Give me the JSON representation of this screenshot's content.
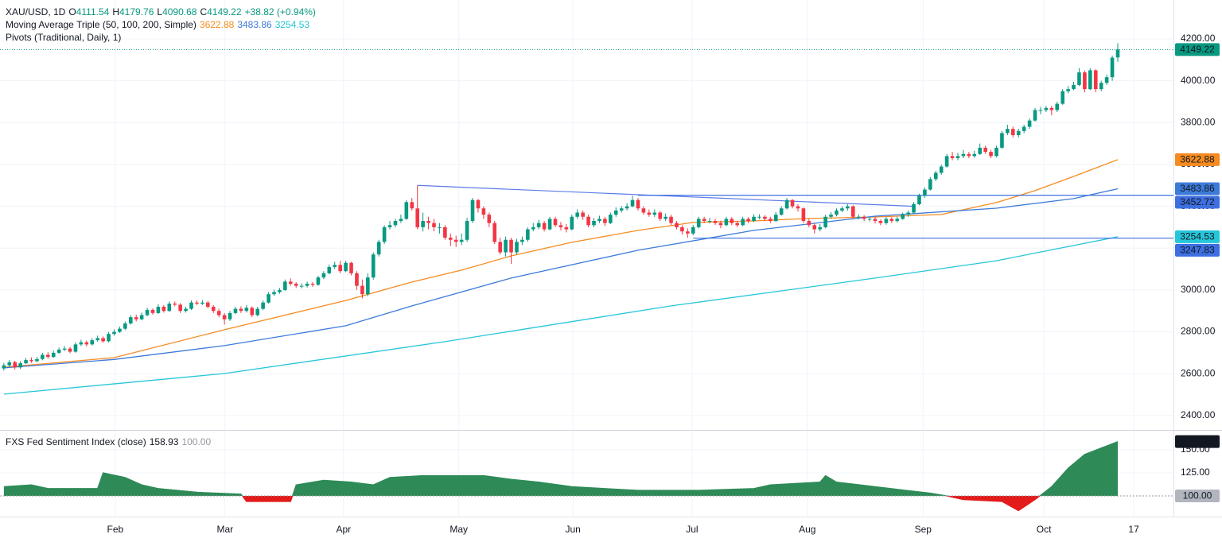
{
  "chart_data": {
    "type": "candlestick",
    "legend": {
      "symbol": "XAU/USD, 1D",
      "open_label": "O",
      "high_label": "H",
      "low_label": "L",
      "close_label": "C",
      "change": "+38.82 (+0.94%)",
      "ma_title": "Moving Average Triple (50, 100, 200, Simple)",
      "pivots_title": "Pivots (Traditional, Daily, 1)"
    },
    "up_color": "#089981",
    "down_color": "#f23645",
    "ohlc": {
      "open": [
        2625,
        2640,
        2655,
        2630,
        2650,
        2665,
        2660,
        2670,
        2690,
        2680,
        2700,
        2715,
        2720,
        2705,
        2740,
        2750,
        2740,
        2760,
        2770,
        2755,
        2790,
        2800,
        2815,
        2840,
        2870,
        2860,
        2880,
        2905,
        2890,
        2920,
        2900,
        2935,
        2930,
        2900,
        2910,
        2940,
        2935,
        2940,
        2920,
        2900,
        2880,
        2860,
        2890,
        2910,
        2900,
        2915,
        2880,
        2910,
        2940,
        2980,
        2990,
        3000,
        3040,
        3030,
        3020,
        3020,
        3030,
        3025,
        3060,
        3080,
        3110,
        3120,
        3090,
        3130,
        3080,
        3020,
        2980,
        3060,
        3170,
        3230,
        3300,
        3310,
        3330,
        3340,
        3420,
        3390,
        3300,
        3330,
        3320,
        3300,
        3300,
        3250,
        3240,
        3230,
        3240,
        3330,
        3430,
        3390,
        3360,
        3320,
        3230,
        3180,
        3240,
        3180,
        3230,
        3240,
        3290,
        3300,
        3320,
        3290,
        3340,
        3310,
        3300,
        3290,
        3350,
        3370,
        3350,
        3310,
        3330,
        3340,
        3320,
        3360,
        3380,
        3390,
        3400,
        3430,
        3390,
        3370,
        3360,
        3370,
        3340,
        3350,
        3320,
        3300,
        3280,
        3270,
        3300,
        3340,
        3330,
        3330,
        3320,
        3310,
        3340,
        3320,
        3310,
        3340,
        3330,
        3350,
        3350,
        3340,
        3330,
        3360,
        3390,
        3430,
        3400,
        3390,
        3330,
        3310,
        3290,
        3300,
        3350,
        3360,
        3380,
        3390,
        3400,
        3350,
        3350,
        3340,
        3340,
        3330,
        3320,
        3340,
        3330,
        3340,
        3360,
        3370,
        3410,
        3450,
        3480,
        3530,
        3560,
        3590,
        3640,
        3630,
        3640,
        3650,
        3640,
        3650,
        3680,
        3660,
        3640,
        3680,
        3750,
        3770,
        3740,
        3760,
        3780,
        3810,
        3860,
        3860,
        3870,
        3860,
        3890,
        3950,
        3960,
        3980,
        4040,
        3960,
        4050,
        3960,
        3990,
        4017,
        4111.54
      ],
      "high": [
        2650,
        2665,
        2662,
        2660,
        2675,
        2678,
        2680,
        2700,
        2702,
        2710,
        2725,
        2732,
        2728,
        2750,
        2762,
        2758,
        2770,
        2782,
        2778,
        2800,
        2812,
        2825,
        2850,
        2880,
        2882,
        2892,
        2915,
        2912,
        2932,
        2928,
        2945,
        2945,
        2938,
        2920,
        2950,
        2950,
        2952,
        2948,
        2928,
        2910,
        2890,
        2900,
        2920,
        2922,
        2928,
        2922,
        2920,
        2950,
        2990,
        3002,
        3010,
        3050,
        3055,
        3038,
        3032,
        3040,
        3038,
        3068,
        3090,
        3122,
        3135,
        3140,
        3140,
        3135,
        3090,
        3050,
        3080,
        3180,
        3240,
        3310,
        3330,
        3340,
        3360,
        3430,
        3440,
        3500,
        3370,
        3350,
        3340,
        3320,
        3310,
        3270,
        3260,
        3270,
        3345,
        3440,
        3435,
        3400,
        3370,
        3330,
        3250,
        3255,
        3250,
        3245,
        3255,
        3300,
        3320,
        3335,
        3330,
        3350,
        3350,
        3325,
        3315,
        3360,
        3385,
        3380,
        3360,
        3345,
        3355,
        3350,
        3370,
        3395,
        3402,
        3415,
        3450,
        3440,
        3400,
        3385,
        3385,
        3378,
        3365,
        3360,
        3330,
        3310,
        3295,
        3310,
        3350,
        3350,
        3345,
        3340,
        3332,
        3350,
        3348,
        3330,
        3350,
        3348,
        3362,
        3362,
        3358,
        3350,
        3372,
        3400,
        3440,
        3435,
        3410,
        3395,
        3340,
        3320,
        3315,
        3360,
        3372,
        3390,
        3400,
        3410,
        3405,
        3362,
        3358,
        3352,
        3350,
        3338,
        3350,
        3348,
        3350,
        3370,
        3380,
        3420,
        3460,
        3490,
        3540,
        3570,
        3600,
        3650,
        3660,
        3655,
        3670,
        3660,
        3665,
        3700,
        3690,
        3670,
        3690,
        3760,
        3790,
        3780,
        3770,
        3790,
        3820,
        3870,
        3875,
        3880,
        3880,
        3900,
        3960,
        3975,
        3995,
        4060,
        4050,
        4060,
        4055,
        4000,
        4030,
        4120,
        4179.76
      ],
      "low": [
        2615,
        2632,
        2620,
        2622,
        2645,
        2652,
        2655,
        2664,
        2672,
        2675,
        2694,
        2708,
        2698,
        2700,
        2732,
        2730,
        2735,
        2752,
        2748,
        2750,
        2782,
        2795,
        2808,
        2835,
        2850,
        2855,
        2874,
        2882,
        2885,
        2892,
        2895,
        2922,
        2890,
        2892,
        2905,
        2928,
        2928,
        2912,
        2890,
        2870,
        2835,
        2852,
        2884,
        2890,
        2892,
        2870,
        2874,
        2904,
        2935,
        2972,
        2982,
        2995,
        3020,
        3010,
        3008,
        3012,
        3015,
        3020,
        3052,
        3075,
        3100,
        3080,
        3085,
        3070,
        3000,
        2960,
        2970,
        3050,
        3160,
        3220,
        3290,
        3300,
        3320,
        3335,
        3380,
        3290,
        3280,
        3290,
        3280,
        3270,
        3240,
        3210,
        3205,
        3215,
        3230,
        3320,
        3370,
        3340,
        3300,
        3220,
        3170,
        3160,
        3125,
        3170,
        3215,
        3230,
        3280,
        3290,
        3280,
        3285,
        3300,
        3285,
        3275,
        3285,
        3340,
        3335,
        3300,
        3300,
        3320,
        3305,
        3315,
        3350,
        3370,
        3380,
        3395,
        3380,
        3360,
        3350,
        3350,
        3330,
        3330,
        3310,
        3290,
        3265,
        3250,
        3262,
        3295,
        3320,
        3318,
        3310,
        3295,
        3305,
        3310,
        3300,
        3305,
        3320,
        3325,
        3338,
        3330,
        3320,
        3325,
        3355,
        3385,
        3390,
        3375,
        3320,
        3300,
        3270,
        3280,
        3295,
        3340,
        3352,
        3372,
        3380,
        3340,
        3338,
        3330,
        3328,
        3318,
        3310,
        3312,
        3320,
        3322,
        3335,
        3350,
        3365,
        3405,
        3440,
        3475,
        3520,
        3550,
        3585,
        3620,
        3620,
        3630,
        3630,
        3632,
        3645,
        3650,
        3630,
        3635,
        3675,
        3740,
        3730,
        3730,
        3750,
        3770,
        3805,
        3840,
        3850,
        3835,
        3850,
        3885,
        3940,
        3955,
        3975,
        3945,
        3955,
        3945,
        3950,
        3980,
        4000,
        4090.68
      ],
      "close": [
        2640,
        2655,
        2630,
        2650,
        2665,
        2660,
        2670,
        2690,
        2680,
        2700,
        2715,
        2720,
        2705,
        2740,
        2750,
        2740,
        2760,
        2770,
        2755,
        2790,
        2800,
        2815,
        2840,
        2870,
        2860,
        2880,
        2905,
        2890,
        2920,
        2900,
        2935,
        2930,
        2900,
        2910,
        2940,
        2935,
        2940,
        2920,
        2900,
        2880,
        2860,
        2890,
        2910,
        2900,
        2915,
        2880,
        2910,
        2940,
        2980,
        2990,
        3000,
        3040,
        3030,
        3020,
        3020,
        3030,
        3025,
        3060,
        3080,
        3110,
        3120,
        3090,
        3130,
        3080,
        3020,
        2980,
        3060,
        3170,
        3230,
        3300,
        3310,
        3330,
        3340,
        3420,
        3390,
        3300,
        3330,
        3320,
        3300,
        3300,
        3250,
        3240,
        3230,
        3240,
        3330,
        3430,
        3390,
        3360,
        3320,
        3230,
        3180,
        3240,
        3180,
        3230,
        3240,
        3290,
        3300,
        3320,
        3290,
        3340,
        3310,
        3300,
        3290,
        3350,
        3370,
        3350,
        3310,
        3330,
        3340,
        3320,
        3360,
        3380,
        3390,
        3400,
        3430,
        3390,
        3370,
        3360,
        3370,
        3340,
        3350,
        3320,
        3300,
        3280,
        3270,
        3300,
        3340,
        3330,
        3330,
        3320,
        3310,
        3340,
        3320,
        3310,
        3340,
        3330,
        3350,
        3350,
        3340,
        3330,
        3360,
        3390,
        3430,
        3400,
        3390,
        3330,
        3310,
        3290,
        3300,
        3350,
        3360,
        3380,
        3390,
        3400,
        3350,
        3350,
        3340,
        3340,
        3330,
        3320,
        3340,
        3330,
        3340,
        3360,
        3370,
        3410,
        3450,
        3480,
        3530,
        3560,
        3590,
        3640,
        3630,
        3640,
        3650,
        3640,
        3650,
        3680,
        3660,
        3640,
        3680,
        3750,
        3770,
        3740,
        3760,
        3780,
        3810,
        3860,
        3860,
        3870,
        3860,
        3890,
        3950,
        3960,
        3980,
        4040,
        3960,
        4050,
        3960,
        3990,
        4017,
        4110.4,
        4149.22
      ]
    },
    "xlim": [
      -0.7,
      212.1
    ],
    "xticks": [
      {
        "value": 20.2,
        "label": "Feb"
      },
      {
        "value": 40.1,
        "label": "Mar"
      },
      {
        "value": 61.6,
        "label": "Apr"
      },
      {
        "value": 82.5,
        "label": "May"
      },
      {
        "value": 103.2,
        "label": "Jun"
      },
      {
        "value": 124.8,
        "label": "Jul"
      },
      {
        "value": 145.7,
        "label": "Aug"
      },
      {
        "value": 166.7,
        "label": "Sep"
      },
      {
        "value": 188.6,
        "label": "Oct"
      },
      {
        "value": 204.9,
        "label": "17"
      }
    ],
    "ylim": [
      2335,
      4386
    ],
    "yticks": [
      {
        "value": 2400,
        "label": "2400.00"
      },
      {
        "value": 2600,
        "label": "2600.00"
      },
      {
        "value": 2800,
        "label": "2800.00"
      },
      {
        "value": 3000,
        "label": "3000.00"
      },
      {
        "value": 3200,
        "label": "3200.00"
      },
      {
        "value": 3400,
        "label": "3400.00"
      },
      {
        "value": 3600,
        "label": "3600.00"
      },
      {
        "value": 3800,
        "label": "3800.00"
      },
      {
        "value": 4000,
        "label": "4000.00"
      },
      {
        "value": 4200,
        "label": "4200.00"
      }
    ],
    "grid": true,
    "overlays": [
      {
        "color": "#f68b1f",
        "x": [
          0,
          20,
          40,
          49,
          62,
          74,
          83,
          92,
          103,
          115,
          125,
          136,
          146,
          158,
          170,
          180,
          187,
          194,
          202
        ],
        "values": [
          2631,
          2677,
          2810,
          2867,
          2950,
          3038,
          3095,
          3163,
          3228,
          3285,
          3323,
          3330,
          3342,
          3349,
          3361,
          3418,
          3475,
          3543,
          3622.88
        ]
      },
      {
        "color": "#3d7bd9",
        "x": [
          0,
          20,
          40,
          62,
          74,
          92,
          115,
          136,
          158,
          180,
          194,
          202
        ],
        "values": [
          2628,
          2668,
          2734,
          2829,
          2924,
          3057,
          3190,
          3285,
          3353,
          3391,
          3437,
          3483.86
        ]
      },
      {
        "color": "#26c6da",
        "x": [
          0,
          40,
          80,
          121,
          158,
          180,
          202
        ],
        "values": [
          2502,
          2601,
          2753,
          2924,
          3057,
          3140,
          3254.53
        ]
      }
    ],
    "levels": [
      {
        "value": 3452.72,
        "x_start": 115,
        "color": "#3d6fe0"
      },
      {
        "value": 3247.83,
        "x_start": 125,
        "color": "#3d6fe0"
      }
    ],
    "trendline": {
      "x": [
        75,
        165
      ],
      "values": [
        3500,
        3400
      ],
      "color": "#5b7be8"
    },
    "indicator": {
      "type": "area",
      "title": "FXS Fed Sentiment Index (close)",
      "up_color": "#2e8b57",
      "down_color": "#e31b1b",
      "x": [
        0,
        5,
        8,
        17,
        18,
        22,
        25,
        28,
        35,
        43,
        44,
        52,
        53,
        58,
        63,
        67,
        70,
        76,
        87,
        92,
        97,
        103,
        109,
        115,
        120,
        126,
        136,
        139,
        148,
        149,
        151,
        158,
        168,
        171,
        174,
        181,
        184,
        187,
        190,
        193,
        196,
        199,
        202
      ],
      "values": [
        110,
        112,
        108,
        108,
        125,
        120,
        112,
        108,
        104,
        102,
        94,
        94,
        112,
        117,
        115,
        112,
        120,
        122,
        122,
        118,
        115,
        110,
        108,
        106,
        106,
        106,
        108,
        112,
        115,
        122,
        115,
        110,
        103,
        100,
        96,
        94,
        84,
        96,
        110,
        130,
        145,
        152,
        158.93
      ],
      "baseline": {
        "value": 100,
        "label": "100.00"
      },
      "ylim": [
        86.2,
        170.7
      ],
      "yticks": [
        {
          "value": 125,
          "label": "125.00"
        },
        {
          "value": 150,
          "label": "150.00"
        }
      ]
    }
  }
}
